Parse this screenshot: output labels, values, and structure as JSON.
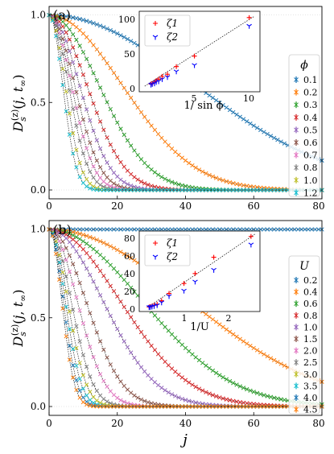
{
  "figure": {
    "x_axis_label": "j",
    "panels": [
      {
        "tag": "(a)",
        "ylabel": "D_s^(z)(j, t_∞)",
        "legend_title": "ϕ",
        "inset_xlabel": "1/ sin ϕ"
      },
      {
        "tag": "(b)",
        "ylabel": "D_s^(z)(j, t_∞)",
        "legend_title": "U",
        "inset_xlabel": "1/U"
      }
    ],
    "inset_legend": [
      "ζ1",
      "ζ2"
    ],
    "series_colors": [
      "#1f77b4",
      "#ff7f0e",
      "#2ca02c",
      "#d62728",
      "#9467bd",
      "#8c564b",
      "#e377c2",
      "#7f7f7f",
      "#bcbd22",
      "#17becf",
      "#1f77b4",
      "#ff7f0e"
    ],
    "inset_colors": {
      "zeta1": "#ff0000",
      "zeta2": "#0000ff"
    }
  },
  "chart_data": [
    {
      "type": "line",
      "panel": "(a)",
      "xlabel": "",
      "ylabel": "D_s^(z)(j, t_∞)",
      "xlim": [
        0,
        80
      ],
      "ylim": [
        -0.05,
        1.05
      ],
      "xticks": [
        0,
        20,
        40,
        60,
        80
      ],
      "yticks": [
        0.0,
        0.5,
        1.0
      ],
      "legend_title": "ϕ",
      "legend_position": "right",
      "note": "curves follow a Gaussian-like decay exp(-(j/zeta)^2)",
      "series": [
        {
          "name": "0.1",
          "zeta": 60.0
        },
        {
          "name": "0.2",
          "zeta": 30.0
        },
        {
          "name": "0.3",
          "zeta": 20.5
        },
        {
          "name": "0.4",
          "zeta": 15.5
        },
        {
          "name": "0.5",
          "zeta": 12.5
        },
        {
          "name": "0.6",
          "zeta": 10.5
        },
        {
          "name": "0.7",
          "zeta": 9.2
        },
        {
          "name": "0.8",
          "zeta": 8.0
        },
        {
          "name": "1.0",
          "zeta": 6.6
        },
        {
          "name": "1.2",
          "zeta": 5.6
        }
      ],
      "inset": {
        "type": "scatter",
        "xlabel": "1/ sin ϕ",
        "xlim": [
          0,
          11
        ],
        "ylim": [
          -5,
          110
        ],
        "xticks": [
          5,
          10
        ],
        "yticks": [
          0,
          50,
          100
        ],
        "series": [
          {
            "name": "ζ1",
            "marker": "+",
            "x": [
              10.02,
              5.03,
              3.38,
              2.57,
              2.09,
              1.77,
              1.55,
              1.39,
              1.19,
              1.07
            ],
            "y": [
              101,
              46,
              31,
              20,
              17,
              13,
              11,
              9,
              7,
              6
            ]
          },
          {
            "name": "ζ2",
            "marker": "tri_down",
            "x": [
              10.02,
              5.03,
              3.38,
              2.57,
              2.09,
              1.77,
              1.55,
              1.39,
              1.19,
              1.07
            ],
            "y": [
              89,
              33,
              24,
              16,
              13,
              10,
              9,
              7,
              6,
              5
            ]
          }
        ],
        "fit_line": {
          "x": [
            0.5,
            10.5
          ],
          "y": [
            3,
            103
          ]
        }
      }
    },
    {
      "type": "line",
      "panel": "(b)",
      "xlabel": "j",
      "ylabel": "D_s^(z)(j, t_∞)",
      "xlim": [
        0,
        80
      ],
      "ylim": [
        -0.05,
        1.05
      ],
      "xticks": [
        0,
        20,
        40,
        60,
        80
      ],
      "yticks": [
        0.0,
        0.5,
        1.0
      ],
      "legend_title": "U",
      "legend_position": "right",
      "note": "curves follow a Gaussian-like decay exp(-(j/zeta)^2); U=0.2 stays at 1.0",
      "series": [
        {
          "name": "0.2",
          "zeta": 100000
        },
        {
          "name": "0.4",
          "zeta": 57.0
        },
        {
          "name": "0.6",
          "zeta": 38.0
        },
        {
          "name": "0.8",
          "zeta": 29.0
        },
        {
          "name": "1.0",
          "zeta": 22.0
        },
        {
          "name": "1.5",
          "zeta": 15.0
        },
        {
          "name": "2.0",
          "zeta": 11.5
        },
        {
          "name": "2.5",
          "zeta": 9.0
        },
        {
          "name": "3.0",
          "zeta": 7.6
        },
        {
          "name": "3.5",
          "zeta": 6.6
        },
        {
          "name": "4.0",
          "zeta": 5.8
        },
        {
          "name": "4.5",
          "zeta": 5.2
        }
      ],
      "inset": {
        "type": "scatter",
        "xlabel": "1/U",
        "xlim": [
          0,
          2.7
        ],
        "ylim": [
          -4,
          85
        ],
        "xticks": [
          1,
          2
        ],
        "yticks": [
          0,
          20,
          40,
          60,
          80
        ],
        "series": [
          {
            "name": "ζ1",
            "marker": "+",
            "x": [
              2.5,
              1.667,
              1.25,
              1.0,
              0.667,
              0.5,
              0.4,
              0.333,
              0.286,
              0.25,
              0.222
            ],
            "y": [
              79,
              56,
              38,
              27,
              16,
              8,
              4,
              3,
              2,
              1.5,
              1
            ]
          },
          {
            "name": "ζ2",
            "marker": "tri_down",
            "x": [
              2.5,
              1.667,
              1.25,
              1.0,
              0.667,
              0.5,
              0.4,
              0.333,
              0.286,
              0.25,
              0.222
            ],
            "y": [
              70,
              42,
              29,
              19,
              13,
              6,
              3,
              2,
              1.5,
              1,
              0.8
            ]
          }
        ],
        "fit_line": {
          "x": [
            0.2,
            2.6
          ],
          "y": [
            1,
            82
          ]
        }
      }
    }
  ]
}
